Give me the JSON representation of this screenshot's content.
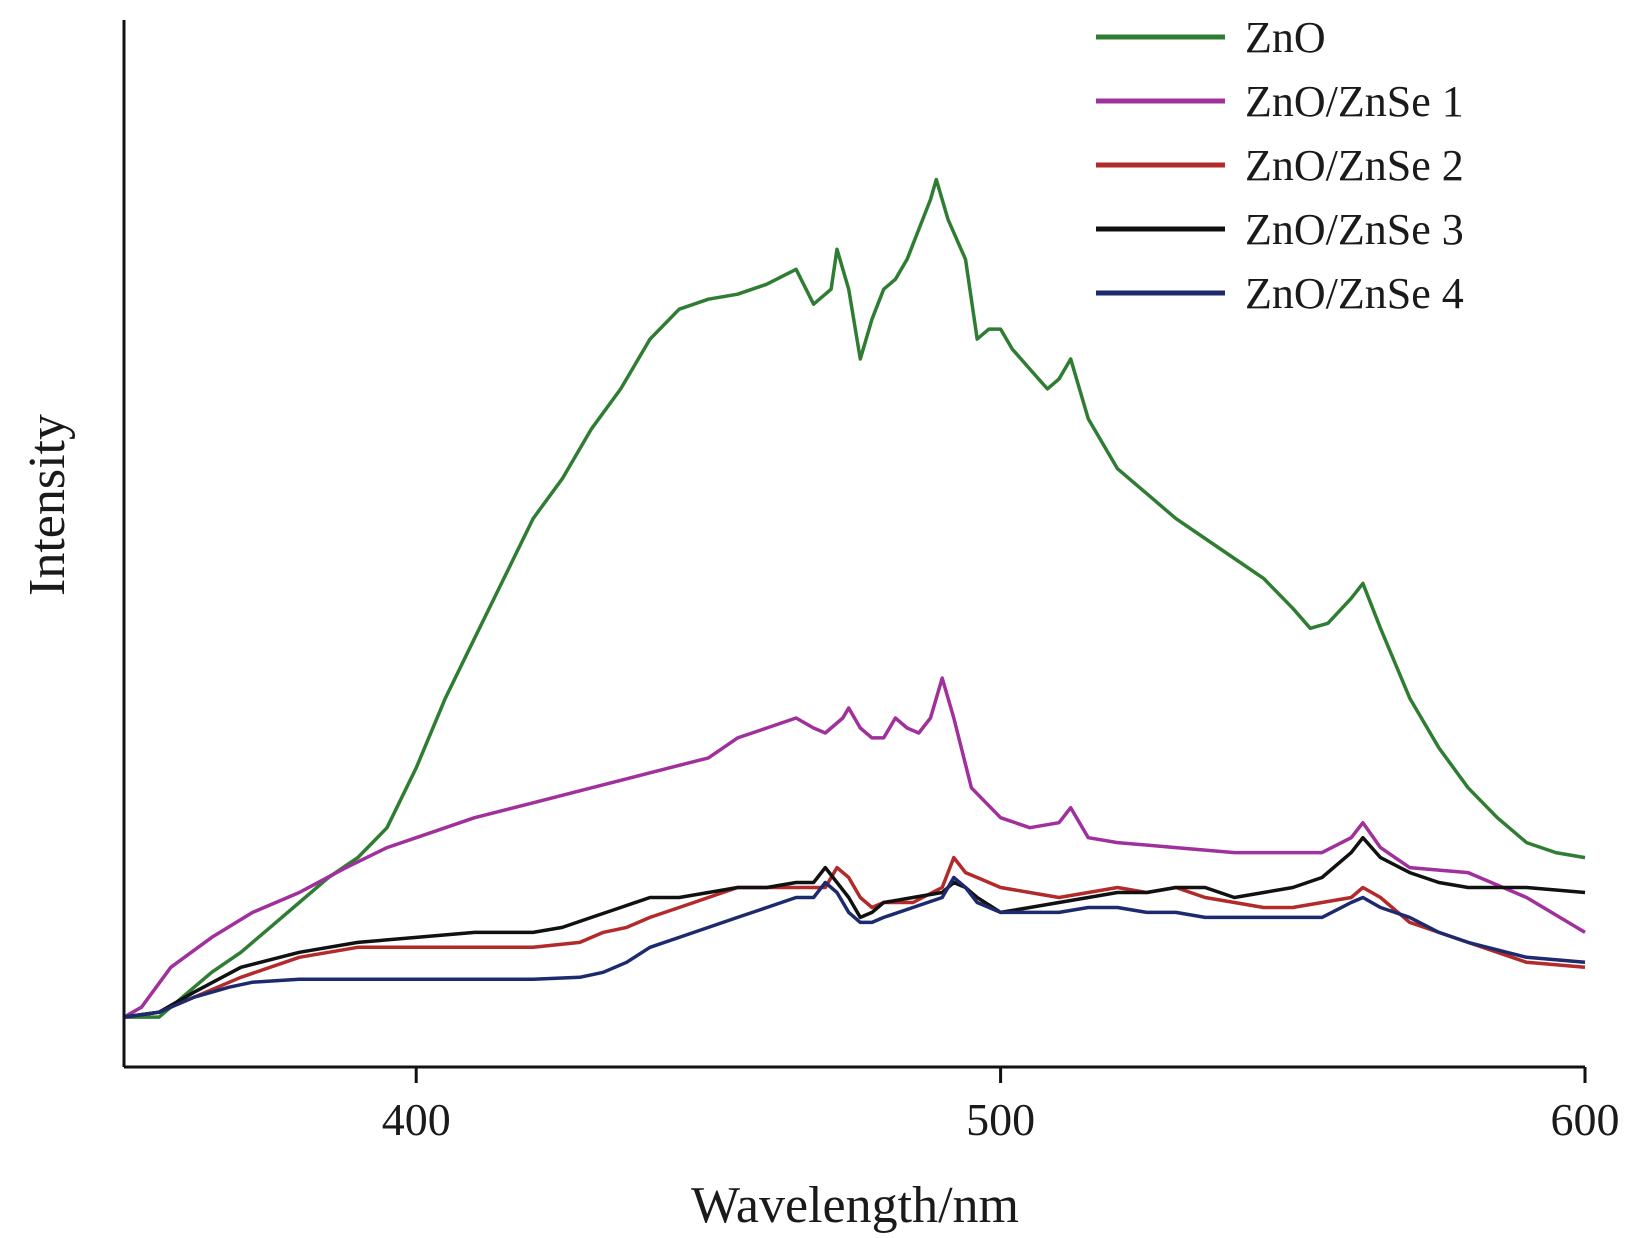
{
  "chart_data": {
    "type": "line",
    "xlabel": "Wavelength/nm",
    "ylabel": "Intensity",
    "xlim": [
      350,
      600
    ],
    "ylim": [
      -0.5,
      10
    ],
    "x_ticks": [
      400,
      500,
      600
    ],
    "y_ticks": [],
    "grid": false,
    "legend_position": "top-right",
    "series": [
      {
        "name": "ZnO",
        "color": "#2e7d32",
        "points": [
          [
            350,
            0
          ],
          [
            356,
            0
          ],
          [
            360,
            0.2
          ],
          [
            365,
            0.45
          ],
          [
            370,
            0.65
          ],
          [
            375,
            0.9
          ],
          [
            380,
            1.15
          ],
          [
            385,
            1.4
          ],
          [
            390,
            1.6
          ],
          [
            395,
            1.9
          ],
          [
            400,
            2.5
          ],
          [
            405,
            3.2
          ],
          [
            410,
            3.8
          ],
          [
            415,
            4.4
          ],
          [
            420,
            5.0
          ],
          [
            425,
            5.4
          ],
          [
            430,
            5.9
          ],
          [
            435,
            6.3
          ],
          [
            440,
            6.8
          ],
          [
            445,
            7.1
          ],
          [
            450,
            7.2
          ],
          [
            455,
            7.25
          ],
          [
            460,
            7.35
          ],
          [
            465,
            7.5
          ],
          [
            468,
            7.15
          ],
          [
            471,
            7.3
          ],
          [
            472,
            7.7
          ],
          [
            474,
            7.3
          ],
          [
            476,
            6.6
          ],
          [
            478,
            7.0
          ],
          [
            480,
            7.3
          ],
          [
            482,
            7.4
          ],
          [
            484,
            7.6
          ],
          [
            486,
            7.9
          ],
          [
            488,
            8.2
          ],
          [
            489,
            8.4
          ],
          [
            491,
            8.0
          ],
          [
            494,
            7.6
          ],
          [
            496,
            6.8
          ],
          [
            498,
            6.9
          ],
          [
            500,
            6.9
          ],
          [
            502,
            6.7
          ],
          [
            505,
            6.5
          ],
          [
            508,
            6.3
          ],
          [
            510,
            6.4
          ],
          [
            512,
            6.6
          ],
          [
            515,
            6.0
          ],
          [
            520,
            5.5
          ],
          [
            525,
            5.25
          ],
          [
            530,
            5.0
          ],
          [
            535,
            4.8
          ],
          [
            540,
            4.6
          ],
          [
            545,
            4.4
          ],
          [
            550,
            4.1
          ],
          [
            553,
            3.9
          ],
          [
            556,
            3.95
          ],
          [
            560,
            4.2
          ],
          [
            562,
            4.35
          ],
          [
            565,
            3.9
          ],
          [
            570,
            3.2
          ],
          [
            575,
            2.7
          ],
          [
            580,
            2.3
          ],
          [
            585,
            2.0
          ],
          [
            590,
            1.75
          ],
          [
            595,
            1.65
          ],
          [
            600,
            1.6
          ]
        ]
      },
      {
        "name": "ZnO/ZnSe 1",
        "color": "#a0309c",
        "points": [
          [
            350,
            0
          ],
          [
            353,
            0.1
          ],
          [
            358,
            0.5
          ],
          [
            365,
            0.8
          ],
          [
            372,
            1.05
          ],
          [
            380,
            1.25
          ],
          [
            388,
            1.5
          ],
          [
            395,
            1.7
          ],
          [
            400,
            1.8
          ],
          [
            410,
            2.0
          ],
          [
            420,
            2.15
          ],
          [
            430,
            2.3
          ],
          [
            440,
            2.45
          ],
          [
            450,
            2.6
          ],
          [
            455,
            2.8
          ],
          [
            460,
            2.9
          ],
          [
            465,
            3.0
          ],
          [
            468,
            2.9
          ],
          [
            470,
            2.85
          ],
          [
            473,
            3.0
          ],
          [
            474,
            3.1
          ],
          [
            476,
            2.9
          ],
          [
            478,
            2.8
          ],
          [
            480,
            2.8
          ],
          [
            482,
            3.0
          ],
          [
            484,
            2.9
          ],
          [
            486,
            2.85
          ],
          [
            488,
            3.0
          ],
          [
            490,
            3.4
          ],
          [
            492,
            3.0
          ],
          [
            495,
            2.3
          ],
          [
            500,
            2.0
          ],
          [
            505,
            1.9
          ],
          [
            510,
            1.95
          ],
          [
            512,
            2.1
          ],
          [
            515,
            1.8
          ],
          [
            520,
            1.75
          ],
          [
            530,
            1.7
          ],
          [
            540,
            1.65
          ],
          [
            550,
            1.65
          ],
          [
            555,
            1.65
          ],
          [
            560,
            1.8
          ],
          [
            562,
            1.95
          ],
          [
            565,
            1.7
          ],
          [
            570,
            1.5
          ],
          [
            580,
            1.45
          ],
          [
            590,
            1.2
          ],
          [
            600,
            0.85
          ]
        ]
      },
      {
        "name": "ZnO/ZnSe 2",
        "color": "#b22a2a",
        "points": [
          [
            350,
            0
          ],
          [
            356,
            0.05
          ],
          [
            362,
            0.2
          ],
          [
            370,
            0.4
          ],
          [
            380,
            0.6
          ],
          [
            390,
            0.7
          ],
          [
            400,
            0.7
          ],
          [
            410,
            0.7
          ],
          [
            420,
            0.7
          ],
          [
            428,
            0.75
          ],
          [
            432,
            0.85
          ],
          [
            436,
            0.9
          ],
          [
            440,
            1.0
          ],
          [
            445,
            1.1
          ],
          [
            450,
            1.2
          ],
          [
            455,
            1.3
          ],
          [
            460,
            1.3
          ],
          [
            465,
            1.3
          ],
          [
            470,
            1.3
          ],
          [
            472,
            1.5
          ],
          [
            474,
            1.4
          ],
          [
            476,
            1.2
          ],
          [
            478,
            1.1
          ],
          [
            480,
            1.15
          ],
          [
            485,
            1.15
          ],
          [
            490,
            1.3
          ],
          [
            492,
            1.6
          ],
          [
            494,
            1.45
          ],
          [
            496,
            1.4
          ],
          [
            500,
            1.3
          ],
          [
            505,
            1.25
          ],
          [
            510,
            1.2
          ],
          [
            515,
            1.25
          ],
          [
            520,
            1.3
          ],
          [
            525,
            1.25
          ],
          [
            530,
            1.3
          ],
          [
            535,
            1.2
          ],
          [
            540,
            1.15
          ],
          [
            545,
            1.1
          ],
          [
            550,
            1.1
          ],
          [
            555,
            1.15
          ],
          [
            560,
            1.2
          ],
          [
            562,
            1.3
          ],
          [
            565,
            1.2
          ],
          [
            570,
            0.95
          ],
          [
            580,
            0.75
          ],
          [
            590,
            0.55
          ],
          [
            600,
            0.5
          ]
        ]
      },
      {
        "name": "ZnO/ZnSe 3",
        "color": "#111111",
        "points": [
          [
            350,
            0
          ],
          [
            356,
            0.05
          ],
          [
            362,
            0.25
          ],
          [
            370,
            0.5
          ],
          [
            380,
            0.65
          ],
          [
            390,
            0.75
          ],
          [
            400,
            0.8
          ],
          [
            410,
            0.85
          ],
          [
            420,
            0.85
          ],
          [
            425,
            0.9
          ],
          [
            430,
            1.0
          ],
          [
            435,
            1.1
          ],
          [
            440,
            1.2
          ],
          [
            445,
            1.2
          ],
          [
            450,
            1.25
          ],
          [
            455,
            1.3
          ],
          [
            460,
            1.3
          ],
          [
            465,
            1.35
          ],
          [
            468,
            1.35
          ],
          [
            470,
            1.5
          ],
          [
            472,
            1.35
          ],
          [
            474,
            1.2
          ],
          [
            476,
            1.0
          ],
          [
            478,
            1.05
          ],
          [
            480,
            1.15
          ],
          [
            485,
            1.2
          ],
          [
            490,
            1.25
          ],
          [
            492,
            1.35
          ],
          [
            494,
            1.3
          ],
          [
            496,
            1.2
          ],
          [
            500,
            1.05
          ],
          [
            505,
            1.1
          ],
          [
            510,
            1.15
          ],
          [
            515,
            1.2
          ],
          [
            520,
            1.25
          ],
          [
            525,
            1.25
          ],
          [
            530,
            1.3
          ],
          [
            535,
            1.3
          ],
          [
            540,
            1.2
          ],
          [
            545,
            1.25
          ],
          [
            550,
            1.3
          ],
          [
            555,
            1.4
          ],
          [
            560,
            1.65
          ],
          [
            562,
            1.8
          ],
          [
            565,
            1.6
          ],
          [
            570,
            1.45
          ],
          [
            575,
            1.35
          ],
          [
            580,
            1.3
          ],
          [
            590,
            1.3
          ],
          [
            600,
            1.25
          ]
        ]
      },
      {
        "name": "ZnO/ZnSe 4",
        "color": "#1e2a6e",
        "points": [
          [
            350,
            0
          ],
          [
            356,
            0.05
          ],
          [
            362,
            0.2
          ],
          [
            368,
            0.3
          ],
          [
            372,
            0.35
          ],
          [
            380,
            0.38
          ],
          [
            390,
            0.38
          ],
          [
            400,
            0.38
          ],
          [
            410,
            0.38
          ],
          [
            420,
            0.38
          ],
          [
            428,
            0.4
          ],
          [
            432,
            0.45
          ],
          [
            436,
            0.55
          ],
          [
            440,
            0.7
          ],
          [
            445,
            0.8
          ],
          [
            450,
            0.9
          ],
          [
            455,
            1.0
          ],
          [
            460,
            1.1
          ],
          [
            465,
            1.2
          ],
          [
            468,
            1.2
          ],
          [
            470,
            1.35
          ],
          [
            472,
            1.25
          ],
          [
            474,
            1.05
          ],
          [
            476,
            0.95
          ],
          [
            478,
            0.95
          ],
          [
            480,
            1.0
          ],
          [
            485,
            1.1
          ],
          [
            490,
            1.2
          ],
          [
            492,
            1.4
          ],
          [
            494,
            1.3
          ],
          [
            496,
            1.15
          ],
          [
            500,
            1.05
          ],
          [
            505,
            1.05
          ],
          [
            510,
            1.05
          ],
          [
            515,
            1.1
          ],
          [
            520,
            1.1
          ],
          [
            525,
            1.05
          ],
          [
            530,
            1.05
          ],
          [
            535,
            1.0
          ],
          [
            540,
            1.0
          ],
          [
            545,
            1.0
          ],
          [
            550,
            1.0
          ],
          [
            555,
            1.0
          ],
          [
            560,
            1.15
          ],
          [
            562,
            1.2
          ],
          [
            565,
            1.1
          ],
          [
            570,
            1.0
          ],
          [
            575,
            0.85
          ],
          [
            580,
            0.75
          ],
          [
            590,
            0.6
          ],
          [
            600,
            0.55
          ]
        ]
      }
    ]
  }
}
